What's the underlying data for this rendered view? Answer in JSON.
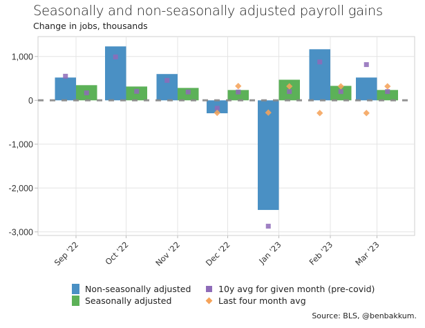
{
  "header": {
    "title": "Seasonally and non-seasonally adjusted payroll gains",
    "subtitle": "Change in jobs, thousands"
  },
  "source": "Source: BLS, @benbakkum.",
  "colors": {
    "nsa": "#4a90c4",
    "sa": "#5cb158",
    "ten_year_avg": "#8e6bb8",
    "last_four_avg": "#f5a35a",
    "zero_line": "#888888",
    "grid": "#e4e4e4"
  },
  "chart_data": {
    "type": "bar",
    "title": "Seasonally and non-seasonally adjusted payroll gains",
    "subtitle": "Change in jobs, thousands",
    "xlabel": "",
    "ylabel": "",
    "ylim": [
      -3050,
      1400
    ],
    "yticks": [
      1000,
      0,
      -1000,
      -2000,
      -3000
    ],
    "ytick_labels": [
      "1,000",
      "0",
      "-1,000",
      "-2,000",
      "-3,000"
    ],
    "grid": true,
    "legend_position": "bottom",
    "categories": [
      "Sep '22",
      "Oct '22",
      "Nov '22",
      "Dec '22",
      "Jan '23",
      "Feb '23",
      "Mar '23"
    ],
    "series": [
      {
        "name": "Non-seasonally adjusted",
        "kind": "bar",
        "values": [
          520,
          1230,
          600,
          -295,
          -2500,
          1165,
          520
        ]
      },
      {
        "name": "Seasonally adjusted",
        "kind": "bar",
        "values": [
          346,
          315,
          283,
          235,
          470,
          330,
          236
        ]
      },
      {
        "name": "10y avg for given month (pre-covid)",
        "kind": "square-marker",
        "on": "nsa",
        "values": [
          550,
          990,
          455,
          -180,
          -2870,
          875,
          815
        ]
      },
      {
        "name": "10y avg for given month (pre-covid)",
        "kind": "square-marker",
        "on": "sa",
        "values": [
          170,
          205,
          190,
          190,
          200,
          200,
          200
        ]
      },
      {
        "name": "Last four month avg",
        "kind": "diamond-marker",
        "on": "nsa",
        "values": [
          null,
          null,
          null,
          -285,
          -280,
          -290,
          -290
        ]
      },
      {
        "name": "Last four month avg",
        "kind": "diamond-marker",
        "on": "sa",
        "values": [
          null,
          null,
          null,
          325,
          320,
          320,
          320
        ]
      }
    ]
  },
  "legend": [
    {
      "label": "Non-seasonally adjusted",
      "marker": "bar",
      "color_key": "nsa"
    },
    {
      "label": "Seasonally adjusted",
      "marker": "bar",
      "color_key": "sa"
    },
    {
      "label": "10y avg for given month (pre-covid)",
      "marker": "square",
      "color_key": "ten_year_avg"
    },
    {
      "label": "Last four month avg",
      "marker": "diamond",
      "color_key": "last_four_avg"
    }
  ]
}
